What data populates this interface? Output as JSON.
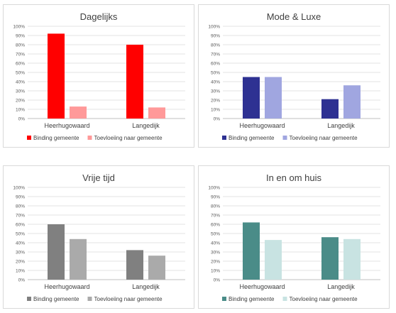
{
  "chart_data": [
    {
      "type": "bar",
      "title": "Dagelijks",
      "categories": [
        "Heerhugowaard",
        "Langedijk"
      ],
      "ylim": [
        0,
        100
      ],
      "yticks": [
        "0%",
        "10%",
        "20%",
        "30%",
        "40%",
        "50%",
        "60%",
        "70%",
        "80%",
        "90%",
        "100%"
      ],
      "series": [
        {
          "name": "Binding gemeente",
          "values": [
            92,
            80
          ],
          "color": "#ff0000"
        },
        {
          "name": "Toevloeiing naar gemeente",
          "values": [
            13,
            12
          ],
          "color": "#ff9999"
        }
      ],
      "grid": true,
      "legend": "bottom"
    },
    {
      "type": "bar",
      "title": "Mode & Luxe",
      "categories": [
        "Heerhugowaard",
        "Langedijk"
      ],
      "ylim": [
        0,
        100
      ],
      "yticks": [
        "0%",
        "10%",
        "20%",
        "30%",
        "40%",
        "50%",
        "60%",
        "70%",
        "80%",
        "90%",
        "100%"
      ],
      "series": [
        {
          "name": "Binding gemeente",
          "values": [
            45,
            21
          ],
          "color": "#2e3192"
        },
        {
          "name": "Toevloeiing naar gemeente",
          "values": [
            45,
            36
          ],
          "color": "#a0a6e0"
        }
      ],
      "grid": true,
      "legend": "bottom"
    },
    {
      "type": "bar",
      "title": "Vrije tijd",
      "categories": [
        "Heerhugowaard",
        "Langedijk"
      ],
      "ylim": [
        0,
        100
      ],
      "yticks": [
        "0%",
        "10%",
        "20%",
        "30%",
        "40%",
        "50%",
        "60%",
        "70%",
        "80%",
        "90%",
        "100%"
      ],
      "series": [
        {
          "name": "Binding gemeente",
          "values": [
            60,
            32
          ],
          "color": "#808080"
        },
        {
          "name": "Toevloeiing naar gemeente",
          "values": [
            44,
            26
          ],
          "color": "#aaaaaa"
        }
      ],
      "grid": true,
      "legend": "bottom"
    },
    {
      "type": "bar",
      "title": "In en om huis",
      "categories": [
        "Heerhugowaard",
        "Langedijk"
      ],
      "ylim": [
        0,
        100
      ],
      "yticks": [
        "0%",
        "10%",
        "20%",
        "30%",
        "40%",
        "50%",
        "60%",
        "70%",
        "80%",
        "90%",
        "100%"
      ],
      "series": [
        {
          "name": "Binding gemeente",
          "values": [
            62,
            46
          ],
          "color": "#4a8c88"
        },
        {
          "name": "Toevloeiing naar gemeente",
          "values": [
            43,
            44
          ],
          "color": "#c8e3e2"
        }
      ],
      "grid": true,
      "legend": "bottom"
    }
  ]
}
